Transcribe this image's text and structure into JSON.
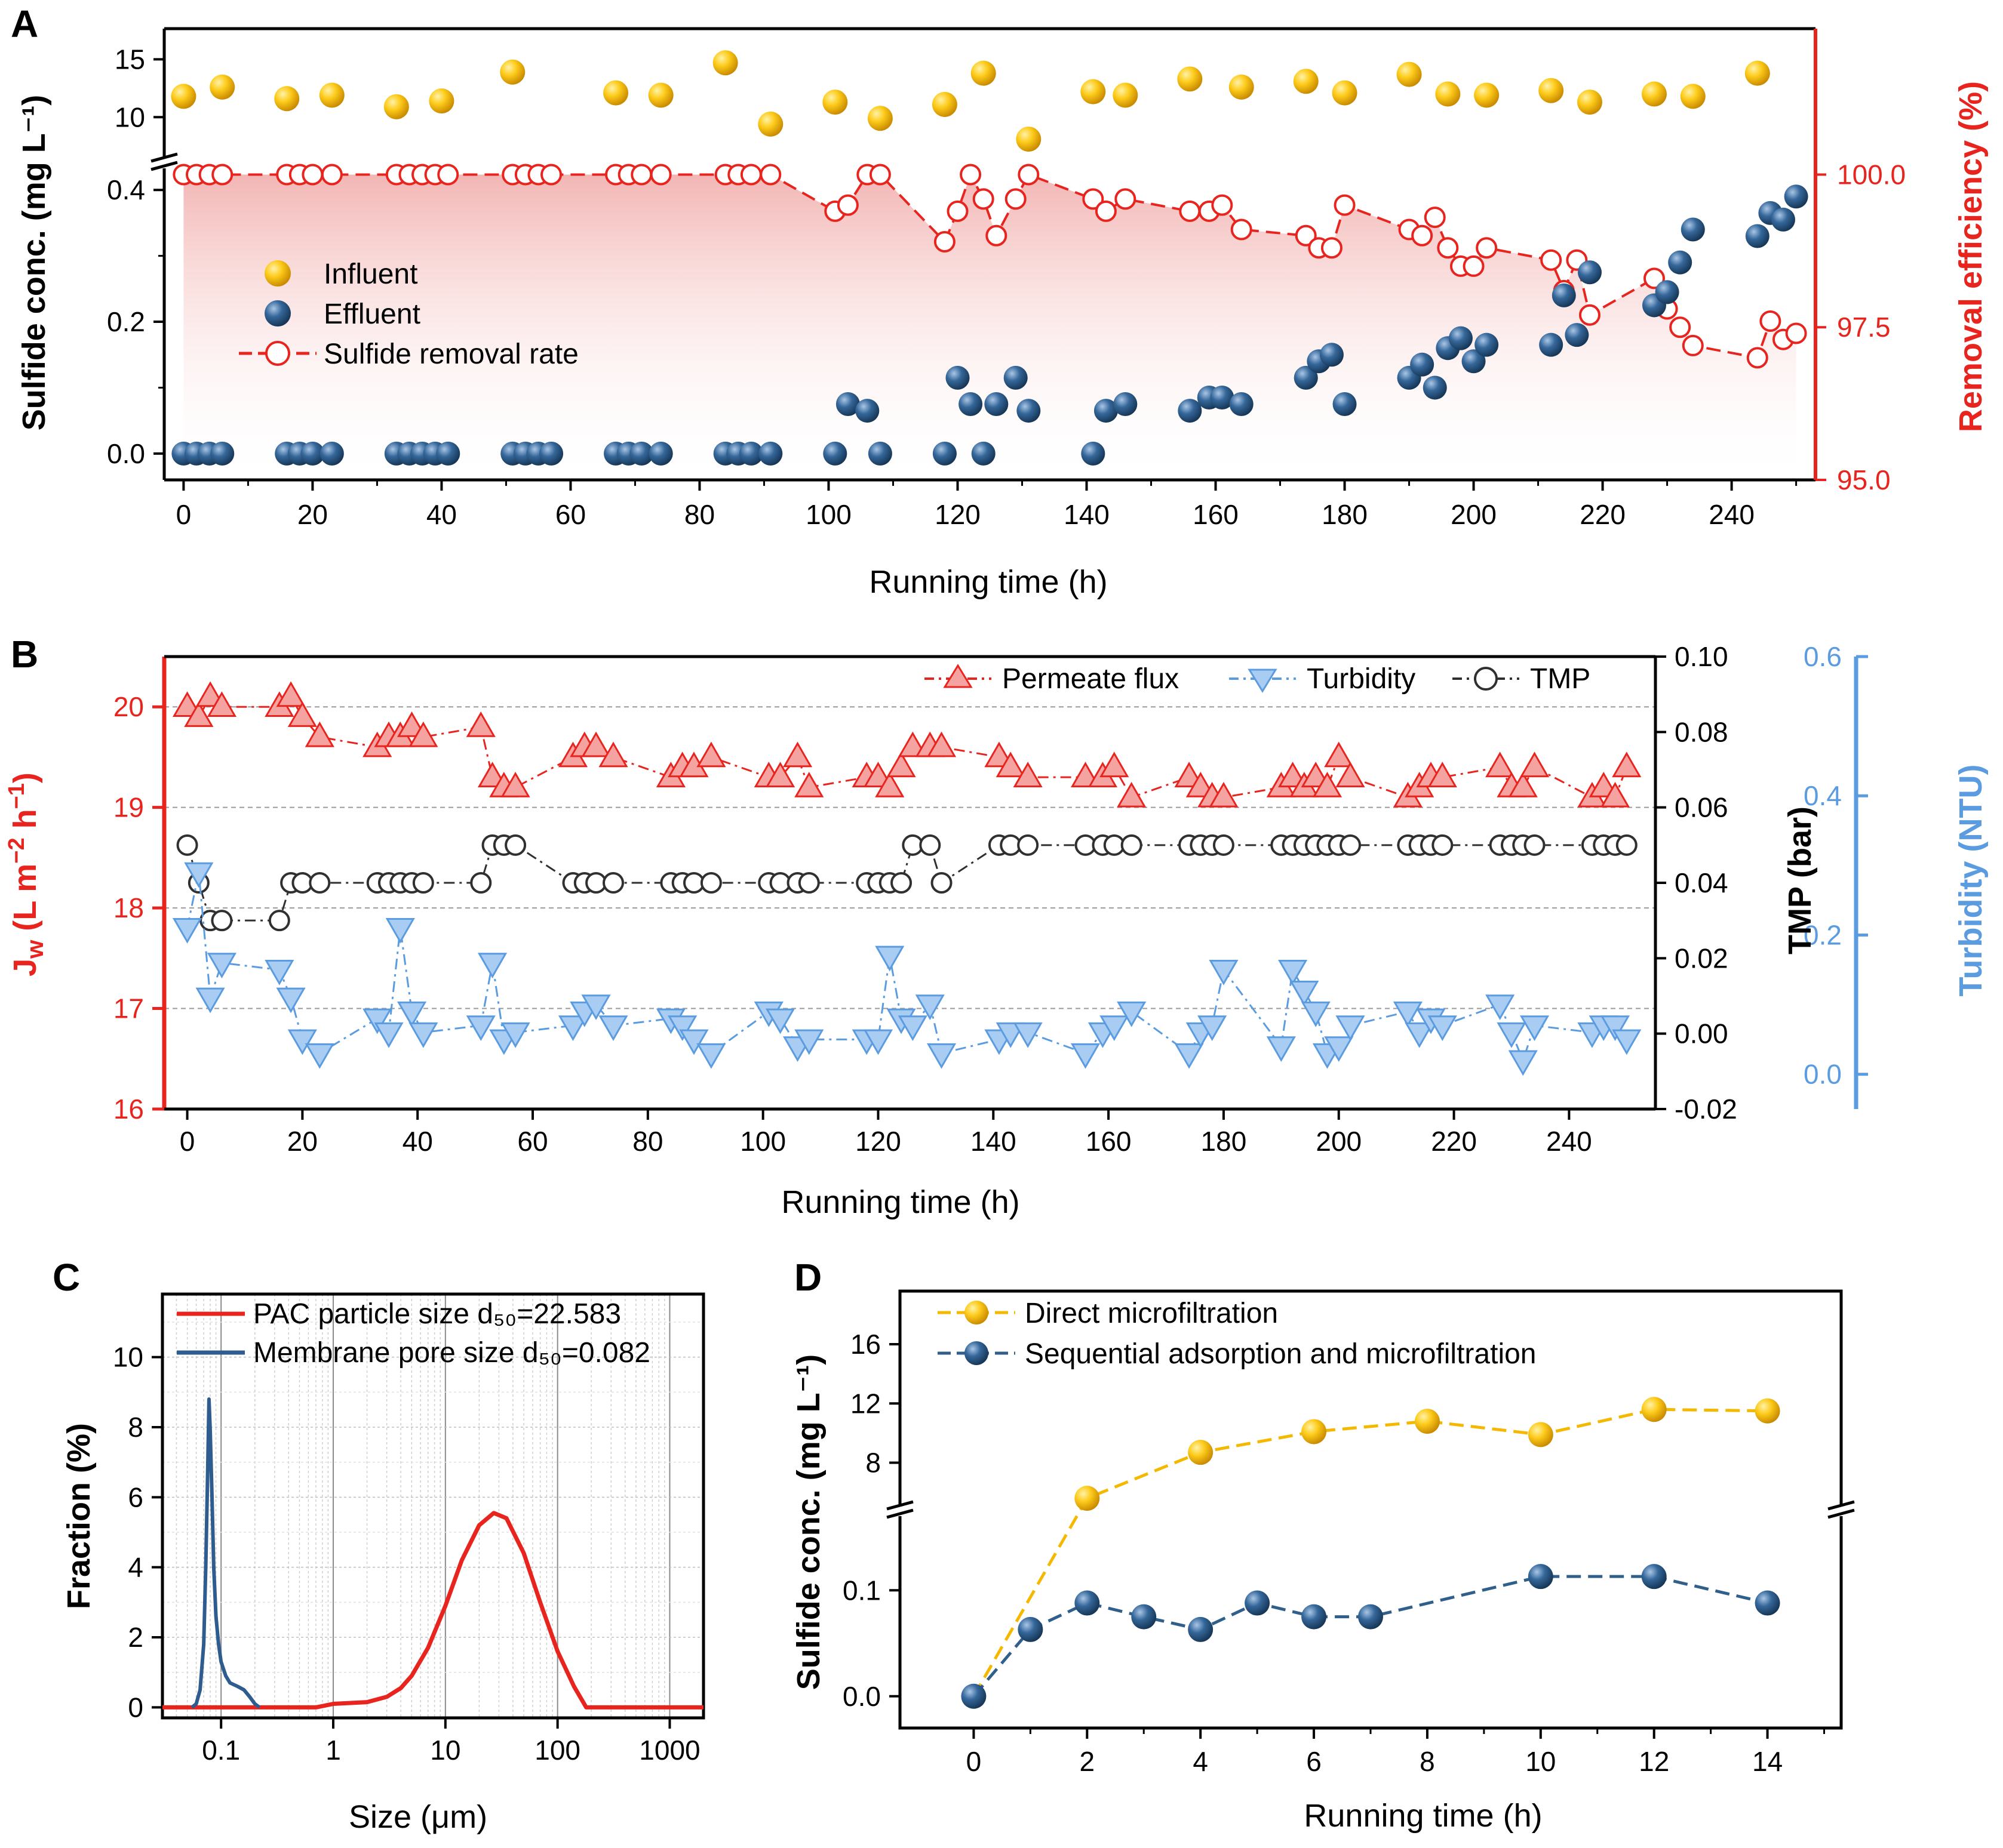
{
  "colors": {
    "influent": "#F5B800",
    "effluent": "#2F5F8A",
    "removal": "#E8241F",
    "flux": "#E8241F",
    "flux_fill": "#F4A3A1",
    "turbidity": "#5B9BE0",
    "turbidity_fill": "#A9CCF2",
    "tmp": "#303030",
    "pac": "#E8241F",
    "membrane": "#2E5C8E",
    "direct": "#F5B800",
    "sequential": "#2F5F8A",
    "shade": "#F4B9B7"
  },
  "chart_data": [
    {
      "panel": "A",
      "type": "scatter",
      "xlabel": "Running time (h)",
      "ylabel_left": "Sulfide conc. (mg L⁻¹)",
      "ylabel_right": "Removal efficiency (%)",
      "xlim": [
        -3,
        253
      ],
      "xticks": [
        "0",
        "20",
        "40",
        "60",
        "80",
        "100",
        "120",
        "140",
        "160",
        "180",
        "200",
        "220",
        "240"
      ],
      "ylim_low": [
        -0.04,
        0.46
      ],
      "ylim_high": [
        8,
        16
      ],
      "yticks_low": [
        "0.0",
        "0.2",
        "0.4"
      ],
      "yticks_high": [
        "10",
        "15"
      ],
      "ylim_right": [
        95.0,
        100.2
      ],
      "yticks_right": [
        "95.0",
        "97.5",
        "100.0"
      ],
      "legend": [
        "Influent",
        "Effluent",
        "Sulfide removal rate"
      ],
      "series": [
        {
          "name": "Influent",
          "x": [
            0,
            6,
            16,
            23,
            33,
            40,
            51,
            67,
            74,
            84,
            91,
            101,
            108,
            118,
            124,
            131,
            141,
            146,
            156,
            164,
            174,
            180,
            190,
            196,
            202,
            212,
            218,
            228,
            234,
            244
          ],
          "values": [
            11.8,
            12.6,
            11.6,
            11.9,
            10.9,
            11.4,
            13.9,
            12.1,
            11.9,
            14.7,
            9.4,
            11.3,
            9.9,
            11.1,
            13.8,
            8.1,
            12.2,
            11.9,
            13.3,
            12.6,
            13.1,
            12.1,
            13.7,
            12.0,
            11.9,
            12.3,
            11.3,
            12.0,
            11.8,
            13.8
          ]
        },
        {
          "name": "Effluent",
          "x": [
            0,
            2,
            4,
            6,
            16,
            18,
            20,
            23,
            33,
            35,
            37,
            39,
            41,
            51,
            53,
            55,
            57,
            67,
            69,
            71,
            74,
            84,
            86,
            88,
            91,
            101,
            103,
            106,
            108,
            118,
            120,
            122,
            124,
            126,
            129,
            131,
            141,
            143,
            146,
            156,
            159,
            161,
            164,
            174,
            176,
            178,
            180,
            190,
            192,
            194,
            196,
            198,
            200,
            202,
            212,
            214,
            216,
            218,
            228,
            230,
            232,
            234,
            244,
            246,
            248,
            250
          ],
          "values": [
            0,
            0,
            0,
            0,
            0,
            0,
            0,
            0,
            0,
            0,
            0,
            0,
            0,
            0,
            0,
            0,
            0,
            0,
            0,
            0,
            0,
            0,
            0,
            0,
            0,
            0,
            0.075,
            0.065,
            0,
            0,
            0.115,
            0.075,
            0,
            0.075,
            0.115,
            0.065,
            0,
            0.065,
            0.075,
            0.065,
            0.085,
            0.085,
            0.075,
            0.115,
            0.14,
            0.15,
            0.075,
            0.115,
            0.135,
            0.1,
            0.16,
            0.175,
            0.14,
            0.165,
            0.165,
            0.24,
            0.18,
            0.275,
            0.225,
            0.245,
            0.29,
            0.34,
            0.33,
            0.365,
            0.355,
            0.39
          ]
        },
        {
          "name": "Sulfide removal rate",
          "x": [
            0,
            2,
            4,
            6,
            16,
            18,
            20,
            23,
            33,
            35,
            37,
            39,
            41,
            51,
            53,
            55,
            57,
            67,
            69,
            71,
            74,
            84,
            86,
            88,
            91,
            101,
            103,
            106,
            108,
            118,
            120,
            122,
            124,
            126,
            129,
            131,
            141,
            143,
            146,
            156,
            159,
            161,
            164,
            174,
            176,
            178,
            180,
            190,
            192,
            194,
            196,
            198,
            200,
            202,
            212,
            214,
            216,
            218,
            228,
            230,
            232,
            234,
            244,
            246,
            248,
            250
          ],
          "values": [
            100,
            100,
            100,
            100,
            100,
            100,
            100,
            100,
            100,
            100,
            100,
            100,
            100,
            100,
            100,
            100,
            100,
            100,
            100,
            100,
            100,
            100,
            100,
            100,
            100,
            99.4,
            99.5,
            100,
            100,
            98.9,
            99.4,
            100,
            99.6,
            99.0,
            99.6,
            100,
            99.6,
            99.4,
            99.6,
            99.4,
            99.4,
            99.5,
            99.1,
            99.0,
            98.8,
            98.8,
            99.5,
            99.1,
            99.0,
            99.3,
            98.8,
            98.5,
            98.5,
            98.8,
            98.6,
            98.1,
            98.6,
            97.7,
            98.3,
            97.8,
            97.5,
            97.2,
            97.0,
            97.6,
            97.3,
            97.4
          ]
        }
      ]
    },
    {
      "panel": "B",
      "type": "line",
      "xlabel": "Running time (h)",
      "ylabel_left": "Jw (L m⁻² h⁻¹)",
      "ylabel_mid": "TMP (bar)",
      "ylabel_right": "Turbidity (NTU)",
      "xlim": [
        -4,
        255
      ],
      "xticks": [
        "0",
        "20",
        "40",
        "60",
        "80",
        "100",
        "120",
        "140",
        "160",
        "180",
        "200",
        "220",
        "240"
      ],
      "ylim_left": [
        16,
        20.5
      ],
      "yticks_left": [
        "16",
        "17",
        "18",
        "19",
        "20"
      ],
      "ylim_mid": [
        -0.02,
        0.1
      ],
      "yticks_mid": [
        "-0.02",
        "0.00",
        "0.02",
        "0.04",
        "0.06",
        "0.08",
        "0.10"
      ],
      "ylim_right": [
        -0.05,
        0.6
      ],
      "yticks_right": [
        "0.0",
        "0.2",
        "0.4",
        "0.6"
      ],
      "legend": [
        "Permeate flux",
        "Turbidity",
        "TMP"
      ],
      "series": [
        {
          "name": "Permeate flux",
          "x": [
            0,
            2,
            4,
            6,
            16,
            18,
            20,
            23,
            33,
            35,
            37,
            39,
            41,
            51,
            53,
            55,
            57,
            67,
            69,
            71,
            74,
            84,
            86,
            88,
            91,
            101,
            103,
            106,
            108,
            118,
            120,
            122,
            124,
            126,
            129,
            131,
            141,
            143,
            146,
            156,
            159,
            161,
            164,
            174,
            176,
            178,
            180,
            190,
            192,
            194,
            196,
            198,
            200,
            202,
            212,
            214,
            216,
            218,
            228,
            230,
            232,
            234,
            244,
            246,
            248,
            250
          ],
          "values": [
            20.0,
            19.9,
            20.1,
            20.0,
            20.0,
            20.1,
            19.9,
            19.7,
            19.6,
            19.7,
            19.7,
            19.8,
            19.7,
            19.8,
            19.3,
            19.2,
            19.2,
            19.5,
            19.6,
            19.6,
            19.5,
            19.3,
            19.4,
            19.4,
            19.5,
            19.3,
            19.3,
            19.5,
            19.2,
            19.3,
            19.3,
            19.2,
            19.4,
            19.6,
            19.6,
            19.6,
            19.5,
            19.4,
            19.3,
            19.3,
            19.3,
            19.4,
            19.1,
            19.3,
            19.2,
            19.1,
            19.1,
            19.2,
            19.3,
            19.2,
            19.3,
            19.2,
            19.5,
            19.3,
            19.1,
            19.2,
            19.3,
            19.3,
            19.4,
            19.2,
            19.2,
            19.4,
            19.1,
            19.2,
            19.1,
            19.4
          ]
        },
        {
          "name": "Turbidity",
          "x": [
            0,
            2,
            4,
            6,
            16,
            18,
            20,
            23,
            33,
            35,
            37,
            39,
            41,
            51,
            53,
            55,
            57,
            67,
            69,
            71,
            74,
            84,
            86,
            88,
            91,
            101,
            103,
            106,
            108,
            118,
            120,
            122,
            124,
            126,
            129,
            131,
            141,
            143,
            146,
            156,
            159,
            161,
            164,
            174,
            176,
            178,
            180,
            190,
            192,
            194,
            196,
            198,
            200,
            202,
            212,
            214,
            216,
            218,
            228,
            230,
            232,
            234,
            244,
            246,
            248,
            250
          ],
          "values": [
            0.21,
            0.29,
            0.11,
            0.16,
            0.15,
            0.11,
            0.05,
            0.03,
            0.08,
            0.06,
            0.21,
            0.09,
            0.06,
            0.07,
            0.16,
            0.05,
            0.06,
            0.07,
            0.09,
            0.1,
            0.07,
            0.08,
            0.07,
            0.05,
            0.03,
            0.09,
            0.08,
            0.04,
            0.05,
            0.05,
            0.05,
            0.17,
            0.08,
            0.07,
            0.1,
            0.03,
            0.05,
            0.06,
            0.06,
            0.03,
            0.06,
            0.07,
            0.09,
            0.03,
            0.06,
            0.07,
            0.15,
            0.04,
            0.15,
            0.12,
            0.09,
            0.03,
            0.04,
            0.07,
            0.09,
            0.06,
            0.08,
            0.07,
            0.1,
            0.06,
            0.02,
            0.07,
            0.06,
            0.07,
            0.07,
            0.05
          ]
        },
        {
          "name": "TMP",
          "x": [
            0,
            2,
            4,
            6,
            16,
            18,
            20,
            23,
            33,
            35,
            37,
            39,
            41,
            51,
            53,
            55,
            57,
            67,
            69,
            71,
            74,
            84,
            86,
            88,
            91,
            101,
            103,
            106,
            108,
            118,
            120,
            122,
            124,
            126,
            129,
            131,
            141,
            143,
            146,
            156,
            159,
            161,
            164,
            174,
            176,
            178,
            180,
            190,
            192,
            194,
            196,
            198,
            200,
            202,
            212,
            214,
            216,
            218,
            228,
            230,
            232,
            234,
            244,
            246,
            248,
            250
          ],
          "values": [
            0.05,
            0.04,
            0.03,
            0.03,
            0.03,
            0.04,
            0.04,
            0.04,
            0.04,
            0.04,
            0.04,
            0.04,
            0.04,
            0.04,
            0.05,
            0.05,
            0.05,
            0.04,
            0.04,
            0.04,
            0.04,
            0.04,
            0.04,
            0.04,
            0.04,
            0.04,
            0.04,
            0.04,
            0.04,
            0.04,
            0.04,
            0.04,
            0.04,
            0.05,
            0.05,
            0.04,
            0.05,
            0.05,
            0.05,
            0.05,
            0.05,
            0.05,
            0.05,
            0.05,
            0.05,
            0.05,
            0.05,
            0.05,
            0.05,
            0.05,
            0.05,
            0.05,
            0.05,
            0.05,
            0.05,
            0.05,
            0.05,
            0.05,
            0.05,
            0.05,
            0.05,
            0.05,
            0.05,
            0.05,
            0.05,
            0.05
          ]
        }
      ]
    },
    {
      "panel": "C",
      "type": "line",
      "xscale": "log",
      "xlabel": "Size (μm)",
      "ylabel": "Fraction (%)",
      "xlim": [
        0.03,
        2000
      ],
      "xticks": [
        "0.1",
        "1",
        "10",
        "100",
        "1000"
      ],
      "ylim": [
        -0.3,
        11.8
      ],
      "yticks": [
        "0",
        "2",
        "4",
        "6",
        "8",
        "10"
      ],
      "legend": [
        "PAC particle size d₅₀=22.583",
        "Membrane pore size d₅₀=0.082"
      ],
      "series": [
        {
          "name": "PAC particle size d₅₀=22.583",
          "x": [
            0.03,
            0.7,
            1.0,
            2.0,
            3.0,
            4.0,
            5.0,
            7.0,
            10,
            14,
            20,
            27,
            35,
            50,
            70,
            100,
            140,
            180,
            2000
          ],
          "values": [
            0,
            0,
            0.1,
            0.15,
            0.3,
            0.55,
            0.9,
            1.7,
            2.9,
            4.2,
            5.2,
            5.55,
            5.4,
            4.4,
            3.0,
            1.6,
            0.6,
            0,
            0
          ]
        },
        {
          "name": "Membrane pore size d₅₀=0.082",
          "x": [
            0.055,
            0.06,
            0.065,
            0.07,
            0.073,
            0.076,
            0.078,
            0.08,
            0.083,
            0.086,
            0.09,
            0.095,
            0.1,
            0.11,
            0.12,
            0.14,
            0.16,
            0.18,
            0.2,
            0.22
          ],
          "values": [
            0,
            0.1,
            0.5,
            1.8,
            4.0,
            6.8,
            8.8,
            7.9,
            6.0,
            4.0,
            2.6,
            1.8,
            1.3,
            0.9,
            0.7,
            0.6,
            0.5,
            0.3,
            0.1,
            0
          ]
        }
      ]
    },
    {
      "panel": "D",
      "type": "line",
      "xlabel": "Running time (h)",
      "ylabel": "Sulfide conc. (mg L⁻¹)",
      "xlim": [
        -1.3,
        15.3
      ],
      "xticks": [
        "0",
        "2",
        "4",
        "6",
        "8",
        "10",
        "12",
        "14"
      ],
      "ylim_low": [
        -0.03,
        0.17
      ],
      "ylim_high": [
        5,
        18.5
      ],
      "yticks_low": [
        "0.0",
        "0.1"
      ],
      "yticks_high": [
        "8",
        "12",
        "16"
      ],
      "legend": [
        "Direct microfiltration",
        "Sequential adsorption and microfiltration"
      ],
      "series": [
        {
          "name": "Direct microfiltration",
          "x": [
            0,
            2,
            4,
            6,
            8,
            10,
            12,
            14
          ],
          "values": [
            0,
            5.6,
            8.7,
            10.1,
            10.8,
            9.9,
            11.6,
            11.5
          ]
        },
        {
          "name": "Sequential adsorption and microfiltration",
          "x": [
            0,
            1,
            2,
            3,
            4,
            5,
            6,
            7,
            10,
            12,
            14
          ],
          "values": [
            0,
            0.063,
            0.088,
            0.075,
            0.063,
            0.088,
            0.075,
            0.075,
            0.113,
            0.113,
            0.088
          ]
        }
      ]
    }
  ]
}
